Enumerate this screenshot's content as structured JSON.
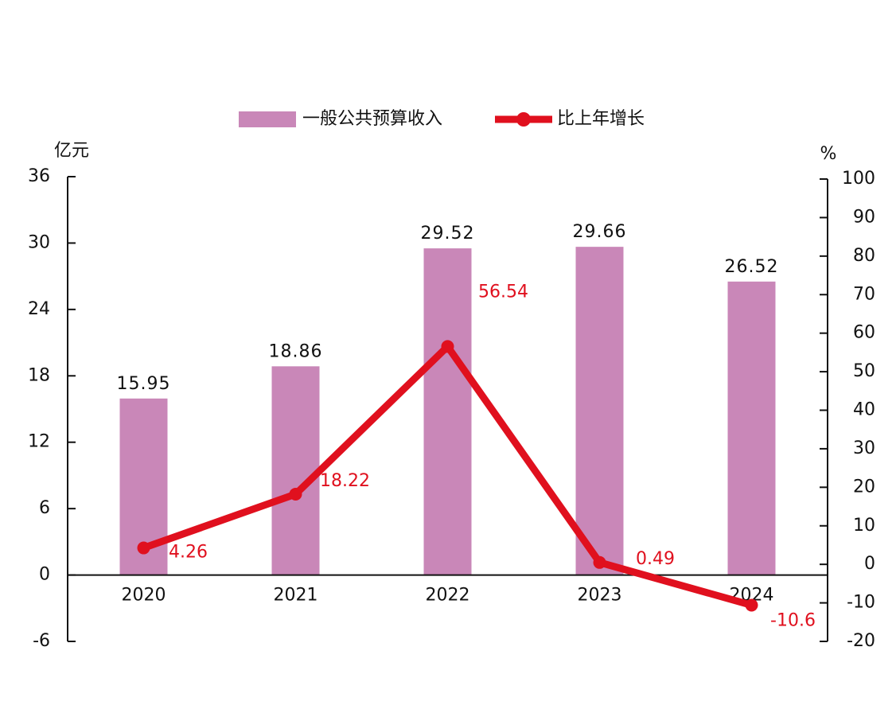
{
  "chart_data": {
    "type": "bar",
    "categories": [
      "2020",
      "2021",
      "2022",
      "2023",
      "2024"
    ],
    "ylabel": "亿元",
    "y2label": "%",
    "ylim": [
      -6,
      36
    ],
    "yticks": [
      -6,
      0,
      6,
      12,
      18,
      24,
      30,
      36
    ],
    "y2lim": [
      -20,
      100
    ],
    "y2ticks": [
      -20,
      -10,
      0,
      10,
      20,
      30,
      40,
      50,
      60,
      70,
      80,
      90,
      100
    ],
    "legend": "top",
    "series": [
      {
        "name": "一般公共预算收入",
        "type": "bar",
        "color": "#c987b8",
        "values": [
          15.95,
          18.86,
          29.52,
          29.66,
          26.52
        ]
      },
      {
        "name": "比上年增长",
        "type": "line",
        "axis": "y2",
        "color": "#e0101e",
        "values": [
          4.26,
          18.22,
          56.54,
          0.49,
          -10.6
        ]
      }
    ]
  }
}
